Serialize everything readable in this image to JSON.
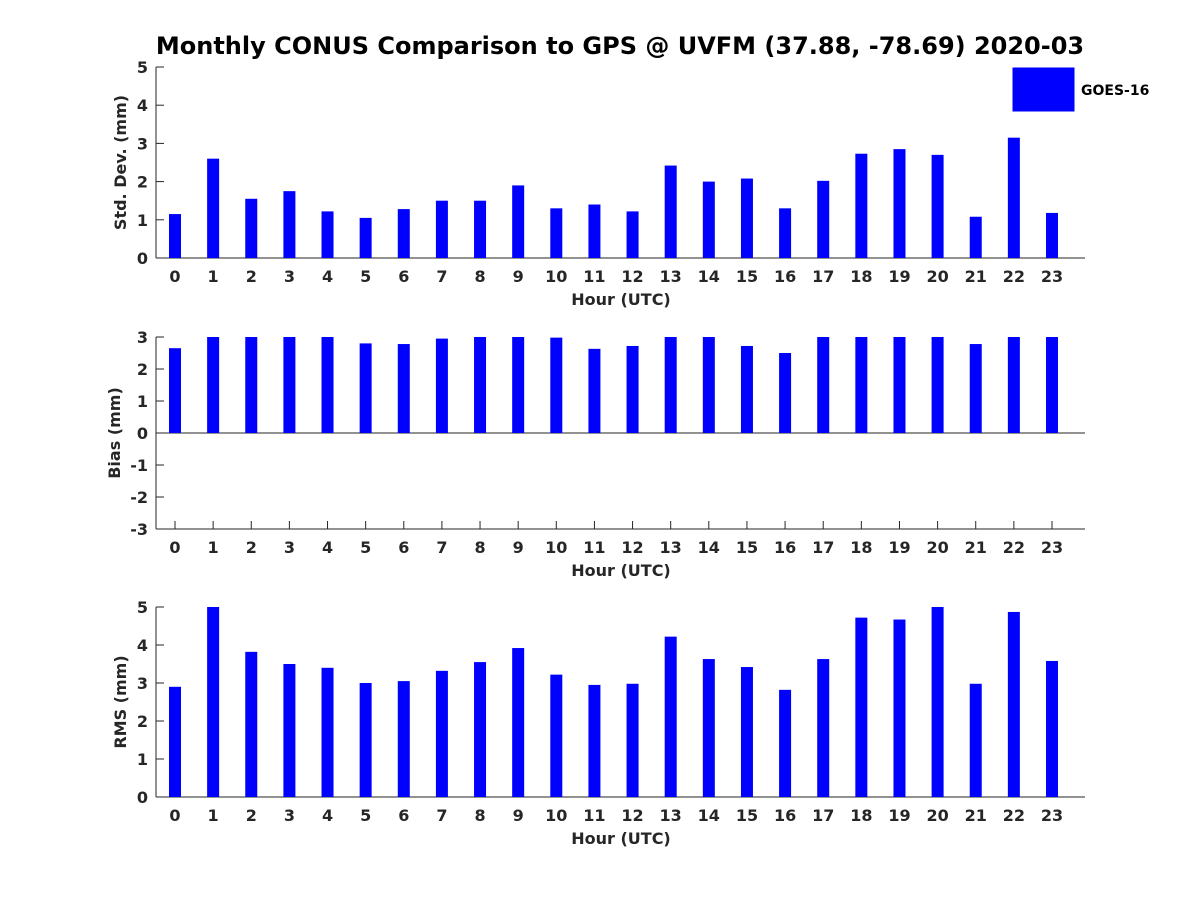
{
  "title": "Monthly CONUS Comparison to GPS @ UVFM (37.88, -78.69) 2020-03",
  "legend": {
    "label": "GOES-16",
    "color": "#0000ff"
  },
  "chart_data": [
    {
      "type": "bar",
      "name": "std-dev",
      "title": "",
      "xlabel": "Hour (UTC)",
      "ylabel": "Std. Dev. (mm)",
      "ylim": [
        0,
        5
      ],
      "yticks": [
        0,
        1,
        2,
        3,
        4,
        5
      ],
      "categories": [
        "0",
        "1",
        "2",
        "3",
        "4",
        "5",
        "6",
        "7",
        "8",
        "9",
        "10",
        "11",
        "12",
        "13",
        "14",
        "15",
        "16",
        "17",
        "18",
        "19",
        "20",
        "21",
        "22",
        "23"
      ],
      "series": [
        {
          "name": "GOES-16",
          "values": [
            1.15,
            2.6,
            1.55,
            1.75,
            1.22,
            1.05,
            1.28,
            1.5,
            1.5,
            1.9,
            1.3,
            1.4,
            1.22,
            2.42,
            2.0,
            2.08,
            1.3,
            2.02,
            2.73,
            2.85,
            2.7,
            1.08,
            3.15,
            1.18
          ]
        }
      ]
    },
    {
      "type": "bar",
      "name": "bias",
      "title": "",
      "xlabel": "Hour (UTC)",
      "ylabel": "Bias (mm)",
      "ylim": [
        -3,
        3
      ],
      "yticks": [
        -3,
        -2,
        -1,
        0,
        1,
        2,
        3
      ],
      "categories": [
        "0",
        "1",
        "2",
        "3",
        "4",
        "5",
        "6",
        "7",
        "8",
        "9",
        "10",
        "11",
        "12",
        "13",
        "14",
        "15",
        "16",
        "17",
        "18",
        "19",
        "20",
        "21",
        "22",
        "23"
      ],
      "series": [
        {
          "name": "GOES-16",
          "values": [
            2.65,
            3.0,
            3.0,
            3.0,
            3.0,
            2.8,
            2.78,
            2.95,
            3.0,
            3.0,
            2.98,
            2.63,
            2.72,
            3.0,
            3.0,
            2.72,
            2.5,
            3.0,
            3.0,
            3.0,
            3.0,
            2.78,
            3.0,
            3.0
          ]
        }
      ]
    },
    {
      "type": "bar",
      "name": "rms",
      "title": "",
      "xlabel": "Hour (UTC)",
      "ylabel": "RMS (mm)",
      "ylim": [
        0,
        5
      ],
      "yticks": [
        0,
        1,
        2,
        3,
        4,
        5
      ],
      "categories": [
        "0",
        "1",
        "2",
        "3",
        "4",
        "5",
        "6",
        "7",
        "8",
        "9",
        "10",
        "11",
        "12",
        "13",
        "14",
        "15",
        "16",
        "17",
        "18",
        "19",
        "20",
        "21",
        "22",
        "23"
      ],
      "series": [
        {
          "name": "GOES-16",
          "values": [
            2.9,
            5.0,
            3.82,
            3.5,
            3.4,
            3.0,
            3.05,
            3.32,
            3.55,
            3.92,
            3.22,
            2.95,
            2.98,
            4.22,
            3.63,
            3.42,
            2.82,
            3.63,
            4.72,
            4.67,
            5.0,
            2.98,
            4.87,
            3.58
          ]
        }
      ]
    }
  ]
}
